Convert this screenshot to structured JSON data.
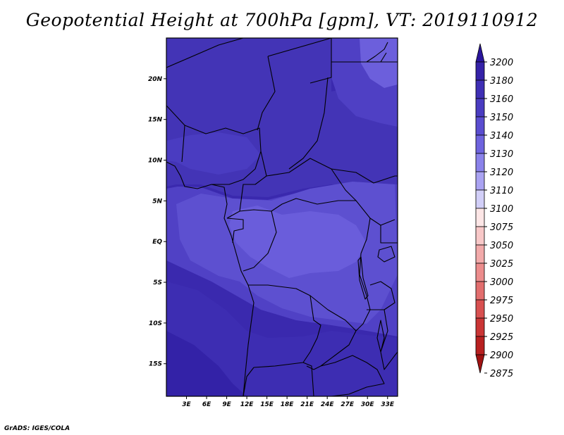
{
  "title": "Geopotential Height at 700hPa [gpm], VT: 2019110912",
  "credit": "GrADS: IGES/COLA",
  "map": {
    "lon_range": [
      0,
      34.5
    ],
    "lat_range": [
      -19,
      25
    ],
    "lat_ticks": [
      {
        "v": 20,
        "label": "20N"
      },
      {
        "v": 15,
        "label": "15N"
      },
      {
        "v": 10,
        "label": "10N"
      },
      {
        "v": 5,
        "label": "5N"
      },
      {
        "v": 0,
        "label": "EQ"
      },
      {
        "v": -5,
        "label": "5S"
      },
      {
        "v": -10,
        "label": "10S"
      },
      {
        "v": -15,
        "label": "15S"
      }
    ],
    "lon_ticks": [
      {
        "v": 3,
        "label": "3E"
      },
      {
        "v": 6,
        "label": "6E"
      },
      {
        "v": 9,
        "label": "9E"
      },
      {
        "v": 12,
        "label": "12E"
      },
      {
        "v": 15,
        "label": "15E"
      },
      {
        "v": 18,
        "label": "18E"
      },
      {
        "v": 21,
        "label": "21E"
      },
      {
        "v": 24,
        "label": "24E"
      },
      {
        "v": 27,
        "label": "27E"
      },
      {
        "v": 30,
        "label": "30E"
      },
      {
        "v": 33,
        "label": "33E"
      }
    ]
  },
  "colorbar": {
    "levels": [
      {
        "label": "3200",
        "color": "#2a159c"
      },
      {
        "label": "3180",
        "color": "#3522a8"
      },
      {
        "label": "3160",
        "color": "#3f2fb5"
      },
      {
        "label": "3150",
        "color": "#4a3cc1"
      },
      {
        "label": "3140",
        "color": "#5a4dd0"
      },
      {
        "label": "3130",
        "color": "#6e63de"
      },
      {
        "label": "3120",
        "color": "#8a82ea"
      },
      {
        "label": "3110",
        "color": "#aaa3f2"
      },
      {
        "label": "3100",
        "color": "#d2cff8"
      },
      {
        "label": "3075",
        "color": "#fde6e6"
      },
      {
        "label": "3050",
        "color": "#f8c8c8"
      },
      {
        "label": "3025",
        "color": "#f2aaaa"
      },
      {
        "label": "3000",
        "color": "#ec8c8c"
      },
      {
        "label": "2975",
        "color": "#e26e6e"
      },
      {
        "label": "2950",
        "color": "#d85050"
      },
      {
        "label": "2925",
        "color": "#ca3535"
      },
      {
        "label": "2900",
        "color": "#b82020"
      },
      {
        "label": "2875",
        "color": "#a01212"
      }
    ]
  }
}
